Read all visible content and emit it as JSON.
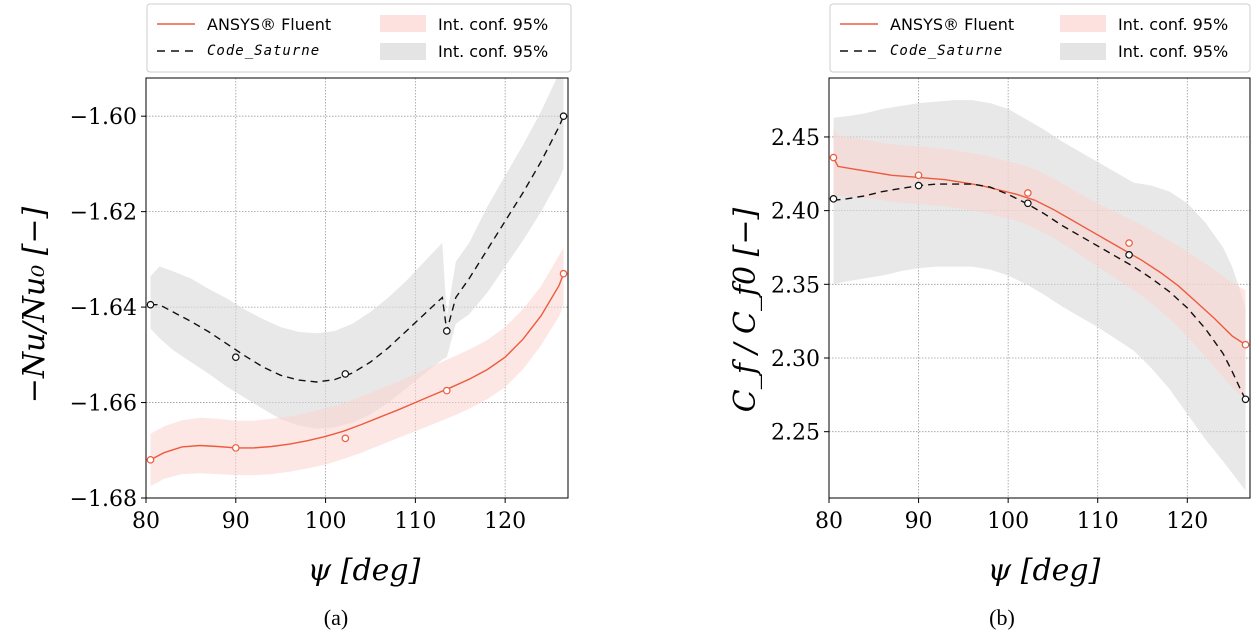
{
  "colors": {
    "fluent": "#ee5a3c",
    "saturne": "#111111",
    "fluent_band": "#fbd4d0",
    "saturne_band": "#d9d9d9"
  },
  "chart_data": [
    {
      "type": "line",
      "caption": "(a)",
      "xlabel": "ψ [deg]",
      "ylabel": "−Nu/Nu₀ [−]",
      "xlim": [
        80,
        127
      ],
      "ylim": [
        -1.68,
        -1.592
      ],
      "xticks": [
        80,
        90,
        100,
        110,
        120
      ],
      "yticks": [
        -1.68,
        -1.66,
        -1.64,
        -1.62,
        -1.6
      ],
      "ytick_labels": [
        "−1.68",
        "−1.66",
        "−1.64",
        "−1.62",
        "−1.60"
      ],
      "grid": true,
      "legend": {
        "placement": "top",
        "entries": [
          "ANSYS® Fluent",
          "Code_Saturne",
          "Int. conf. 95%",
          "Int. conf. 95%"
        ]
      },
      "series": [
        {
          "name": "ANSYS® Fluent",
          "style": "solid",
          "points_x": [
            80.5,
            90.0,
            102.2,
            113.5,
            126.5
          ],
          "points_y": [
            -1.672,
            -1.6695,
            -1.6675,
            -1.6575,
            -1.633
          ],
          "curve_x": [
            80.5,
            82,
            84,
            86,
            88,
            90,
            92,
            94,
            96,
            98,
            100,
            102,
            104,
            106,
            108,
            110,
            112,
            114,
            116,
            118,
            120,
            122,
            124,
            126,
            126.5
          ],
          "curve_y": [
            -1.672,
            -1.6705,
            -1.6693,
            -1.669,
            -1.6692,
            -1.6695,
            -1.6695,
            -1.6692,
            -1.6687,
            -1.668,
            -1.6671,
            -1.666,
            -1.6646,
            -1.6631,
            -1.6616,
            -1.66,
            -1.6584,
            -1.6568,
            -1.6551,
            -1.6531,
            -1.6505,
            -1.6467,
            -1.6418,
            -1.6355,
            -1.633
          ],
          "band_lower": [
            -1.6775,
            -1.676,
            -1.675,
            -1.6748,
            -1.675,
            -1.6752,
            -1.6752,
            -1.675,
            -1.6745,
            -1.6738,
            -1.673,
            -1.6718,
            -1.6705,
            -1.669,
            -1.6675,
            -1.666,
            -1.6645,
            -1.663,
            -1.6613,
            -1.6593,
            -1.6568,
            -1.653,
            -1.648,
            -1.642,
            -1.6395
          ],
          "band_upper": [
            -1.6665,
            -1.665,
            -1.6637,
            -1.6632,
            -1.6634,
            -1.6638,
            -1.6638,
            -1.6634,
            -1.6629,
            -1.6622,
            -1.6612,
            -1.6602,
            -1.6587,
            -1.6572,
            -1.6557,
            -1.654,
            -1.6523,
            -1.6506,
            -1.6489,
            -1.6469,
            -1.6442,
            -1.6404,
            -1.6356,
            -1.6292,
            -1.6275
          ]
        },
        {
          "name": "Code_Saturne",
          "style": "dashed",
          "points_x": [
            80.5,
            90.0,
            102.2,
            113.5,
            126.5
          ],
          "points_y": [
            -1.6395,
            -1.6505,
            -1.654,
            -1.645,
            -1.6
          ],
          "curve_x": [
            80.5,
            81.5,
            83,
            85,
            87,
            89,
            91,
            93,
            95,
            97,
            99,
            101,
            103,
            105,
            107,
            109,
            111,
            113,
            113.5,
            114.5,
            116,
            118,
            120,
            122,
            124,
            126,
            126.5
          ],
          "curve_y": [
            -1.6395,
            -1.6395,
            -1.641,
            -1.643,
            -1.6452,
            -1.6477,
            -1.6502,
            -1.6525,
            -1.6543,
            -1.6553,
            -1.6557,
            -1.6552,
            -1.6538,
            -1.6515,
            -1.6485,
            -1.645,
            -1.6415,
            -1.638,
            -1.645,
            -1.638,
            -1.634,
            -1.628,
            -1.622,
            -1.616,
            -1.6095,
            -1.6022,
            -1.6
          ],
          "band_lower": [
            -1.6445,
            -1.6465,
            -1.649,
            -1.6515,
            -1.654,
            -1.6567,
            -1.659,
            -1.6613,
            -1.6635,
            -1.6648,
            -1.6655,
            -1.6652,
            -1.6642,
            -1.6625,
            -1.66,
            -1.657,
            -1.654,
            -1.651,
            -1.6505,
            -1.6435,
            -1.6415,
            -1.637,
            -1.6315,
            -1.626,
            -1.62,
            -1.6132,
            -1.611
          ],
          "band_upper": [
            -1.6335,
            -1.6315,
            -1.6325,
            -1.634,
            -1.6362,
            -1.6382,
            -1.6405,
            -1.6425,
            -1.6442,
            -1.6452,
            -1.6455,
            -1.645,
            -1.6435,
            -1.641,
            -1.638,
            -1.6345,
            -1.6305,
            -1.6265,
            -1.642,
            -1.6305,
            -1.6265,
            -1.619,
            -1.6125,
            -1.606,
            -1.599,
            -1.591,
            -1.589
          ]
        }
      ]
    },
    {
      "type": "line",
      "caption": "(b)",
      "xlabel": "ψ [deg]",
      "ylabel": "C_f / C_f0 [−]",
      "xlim": [
        80,
        127
      ],
      "ylim": [
        2.205,
        2.49
      ],
      "xticks": [
        80,
        90,
        100,
        110,
        120
      ],
      "yticks": [
        2.25,
        2.3,
        2.35,
        2.4,
        2.45
      ],
      "ytick_labels": [
        "2.25",
        "2.30",
        "2.35",
        "2.40",
        "2.45"
      ],
      "grid": true,
      "legend": {
        "placement": "top",
        "entries": [
          "ANSYS® Fluent",
          "Code_Saturne",
          "Int. conf. 95%",
          "Int. conf. 95%"
        ]
      },
      "series": [
        {
          "name": "ANSYS® Fluent",
          "style": "solid",
          "points_x": [
            80.5,
            90.0,
            102.2,
            113.5,
            126.5
          ],
          "points_y": [
            2.436,
            2.424,
            2.412,
            2.378,
            2.309
          ],
          "curve_x": [
            80.5,
            81,
            83,
            85,
            87,
            89,
            91,
            93,
            95,
            97,
            99,
            101,
            103,
            105,
            107,
            109,
            111,
            113,
            115,
            117,
            119,
            121,
            123,
            125,
            126.5
          ],
          "curve_y": [
            2.436,
            2.43,
            2.428,
            2.426,
            2.424,
            2.423,
            2.422,
            2.421,
            2.419,
            2.417,
            2.414,
            2.411,
            2.407,
            2.401,
            2.394,
            2.387,
            2.38,
            2.373,
            2.366,
            2.358,
            2.349,
            2.338,
            2.327,
            2.315,
            2.309
          ],
          "band_lower": [
            2.41,
            2.41,
            2.409,
            2.408,
            2.406,
            2.405,
            2.404,
            2.403,
            2.401,
            2.399,
            2.396,
            2.393,
            2.388,
            2.382,
            2.374,
            2.366,
            2.358,
            2.35,
            2.342,
            2.332,
            2.321,
            2.308,
            2.294,
            2.28,
            2.272
          ],
          "band_upper": [
            2.455,
            2.451,
            2.449,
            2.447,
            2.445,
            2.444,
            2.443,
            2.442,
            2.44,
            2.438,
            2.435,
            2.432,
            2.428,
            2.422,
            2.415,
            2.408,
            2.402,
            2.396,
            2.39,
            2.383,
            2.376,
            2.368,
            2.36,
            2.351,
            2.346
          ]
        },
        {
          "name": "Code_Saturne",
          "style": "dashed",
          "points_x": [
            80.5,
            90.0,
            102.2,
            113.5,
            126.5
          ],
          "points_y": [
            2.408,
            2.417,
            2.405,
            2.37,
            2.272
          ],
          "curve_x": [
            80.5,
            82,
            84,
            86,
            88,
            90,
            92,
            94,
            96,
            98,
            100,
            102,
            104,
            106,
            108,
            110,
            112,
            114,
            116,
            118,
            120,
            122,
            124,
            125,
            126,
            126.5
          ],
          "curve_y": [
            2.407,
            2.408,
            2.41,
            2.413,
            2.415,
            2.417,
            2.418,
            2.418,
            2.418,
            2.416,
            2.411,
            2.405,
            2.398,
            2.39,
            2.383,
            2.376,
            2.369,
            2.362,
            2.354,
            2.345,
            2.334,
            2.32,
            2.303,
            2.291,
            2.278,
            2.272
          ],
          "band_lower": [
            2.35,
            2.352,
            2.354,
            2.356,
            2.359,
            2.361,
            2.362,
            2.362,
            2.362,
            2.36,
            2.356,
            2.35,
            2.343,
            2.335,
            2.328,
            2.321,
            2.313,
            2.305,
            2.293,
            2.279,
            2.262,
            2.245,
            2.23,
            2.222,
            2.214,
            2.21
          ],
          "band_upper": [
            2.463,
            2.464,
            2.466,
            2.469,
            2.471,
            2.473,
            2.474,
            2.475,
            2.475,
            2.473,
            2.469,
            2.462,
            2.455,
            2.447,
            2.44,
            2.433,
            2.426,
            2.419,
            2.417,
            2.413,
            2.405,
            2.392,
            2.375,
            2.362,
            2.344,
            2.334
          ]
        }
      ]
    }
  ]
}
